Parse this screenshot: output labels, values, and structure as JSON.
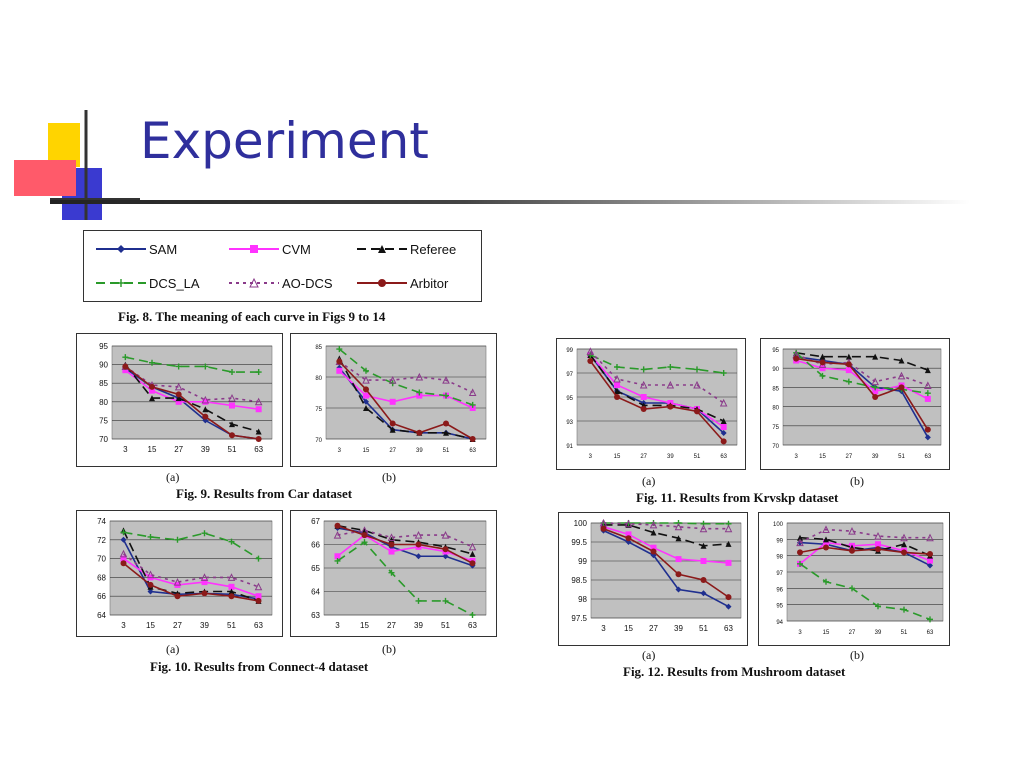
{
  "slide": {
    "title": "Experiment"
  },
  "legend": {
    "items": [
      {
        "name": "SAM",
        "color": "#1f2f8f",
        "marker": "diamond",
        "dash": ""
      },
      {
        "name": "CVM",
        "color": "#ff33ff",
        "marker": "square",
        "dash": ""
      },
      {
        "name": "Referee",
        "color": "#111111",
        "marker": "triangle-filled",
        "dash": "9,5"
      },
      {
        "name": "DCS_LA",
        "color": "#2a9a2a",
        "marker": "plus",
        "dash": "9,5"
      },
      {
        "name": "AO-DCS",
        "color": "#8a3a8a",
        "marker": "triangle-open",
        "dash": "3,4"
      },
      {
        "name": "Arbitor",
        "color": "#8b1a1a",
        "marker": "circle",
        "dash": ""
      }
    ]
  },
  "captions": {
    "fig8": "Fig. 8. The meaning of each curve in Figs 9 to 14",
    "fig9": "Fig. 9. Results from Car dataset",
    "fig10": "Fig. 10. Results from Connect-4 dataset",
    "fig11": "Fig. 11. Results from Krvskp dataset",
    "fig12": "Fig. 12. Results from Mushroom dataset",
    "a": "(a)",
    "b": "(b)"
  },
  "chart_data": [
    {
      "id": "fig9a",
      "type": "line",
      "categories": [
        "3",
        "15",
        "27",
        "39",
        "51",
        "63"
      ],
      "ylim": [
        70,
        95
      ],
      "yticks": [
        70,
        75,
        80,
        85,
        90,
        95
      ],
      "series": [
        {
          "name": "SAM",
          "values": [
            89,
            84,
            81,
            75,
            71,
            70
          ]
        },
        {
          "name": "CVM",
          "values": [
            88.5,
            83,
            80,
            80,
            79,
            78
          ]
        },
        {
          "name": "Referee",
          "values": [
            90,
            81,
            81,
            78,
            74,
            72
          ]
        },
        {
          "name": "DCS_LA",
          "values": [
            92,
            90.5,
            89.5,
            89.5,
            88,
            88
          ]
        },
        {
          "name": "AO-DCS",
          "values": [
            89.5,
            84.5,
            84,
            80.5,
            81,
            80
          ]
        },
        {
          "name": "Arbitor",
          "values": [
            89.5,
            84,
            82,
            76,
            71,
            70
          ]
        }
      ]
    },
    {
      "id": "fig9b",
      "type": "line",
      "categories": [
        "3",
        "15",
        "27",
        "39",
        "51",
        "63"
      ],
      "ylim": [
        70,
        85
      ],
      "yticks": [
        70,
        75,
        80,
        85
      ],
      "series": [
        {
          "name": "SAM",
          "values": [
            81.5,
            76,
            71.5,
            71,
            71,
            70
          ]
        },
        {
          "name": "CVM",
          "values": [
            81,
            77,
            76,
            77,
            77,
            75
          ]
        },
        {
          "name": "Referee",
          "values": [
            83,
            75,
            71.5,
            71,
            71,
            70
          ]
        },
        {
          "name": "DCS_LA",
          "values": [
            84.5,
            81,
            79,
            77.5,
            77,
            75.5
          ]
        },
        {
          "name": "AO-DCS",
          "values": [
            82.5,
            79.5,
            79.5,
            80,
            79.5,
            77.5
          ]
        },
        {
          "name": "Arbitor",
          "values": [
            82.5,
            78,
            72.5,
            71,
            72.5,
            70
          ]
        }
      ]
    },
    {
      "id": "fig10a",
      "type": "line",
      "categories": [
        "3",
        "15",
        "27",
        "39",
        "51",
        "63"
      ],
      "ylim": [
        64,
        74
      ],
      "yticks": [
        64,
        66,
        68,
        70,
        72,
        74
      ],
      "series": [
        {
          "name": "SAM",
          "values": [
            72,
            66.5,
            66.2,
            66.3,
            66.2,
            65.7
          ]
        },
        {
          "name": "CVM",
          "values": [
            70,
            68,
            67.2,
            67.5,
            67,
            66
          ]
        },
        {
          "name": "Referee",
          "values": [
            73,
            67,
            66.3,
            66.5,
            66.5,
            65.5
          ]
        },
        {
          "name": "DCS_LA",
          "values": [
            72.8,
            72.3,
            72,
            72.7,
            71.8,
            70
          ]
        },
        {
          "name": "AO-DCS",
          "values": [
            70.5,
            68.3,
            67.5,
            68,
            68,
            67
          ]
        },
        {
          "name": "Arbitor",
          "values": [
            69.5,
            67.2,
            66,
            66.3,
            66,
            65.5
          ]
        }
      ]
    },
    {
      "id": "fig10b",
      "type": "line",
      "categories": [
        "3",
        "15",
        "27",
        "39",
        "51",
        "63"
      ],
      "ylim": [
        63,
        67
      ],
      "yticks": [
        63,
        64,
        65,
        66,
        67
      ],
      "series": [
        {
          "name": "SAM",
          "values": [
            66.7,
            66.5,
            65.9,
            65.5,
            65.5,
            65.1
          ]
        },
        {
          "name": "CVM",
          "values": [
            65.5,
            66.4,
            65.7,
            65.9,
            65.7,
            65.3
          ]
        },
        {
          "name": "Referee",
          "values": [
            66.8,
            66.6,
            66.2,
            66.1,
            65.9,
            65.6
          ]
        },
        {
          "name": "DCS_LA",
          "values": [
            65.3,
            66.1,
            64.8,
            63.6,
            63.6,
            63
          ]
        },
        {
          "name": "AO-DCS",
          "values": [
            66.4,
            66.6,
            66.3,
            66.4,
            66.4,
            65.9
          ]
        },
        {
          "name": "Arbitor",
          "values": [
            66.8,
            66.4,
            66.0,
            66.0,
            65.8,
            65.2
          ]
        }
      ]
    },
    {
      "id": "fig11a",
      "type": "line",
      "categories": [
        "3",
        "15",
        "27",
        "39",
        "51",
        "63"
      ],
      "ylim": [
        91,
        99
      ],
      "yticks": [
        91,
        93,
        95,
        97,
        99
      ],
      "series": [
        {
          "name": "SAM",
          "values": [
            98.5,
            95.5,
            94.5,
            94.5,
            94,
            92
          ]
        },
        {
          "name": "CVM",
          "values": [
            98.5,
            96,
            95,
            94.5,
            94,
            92.5
          ]
        },
        {
          "name": "Referee",
          "values": [
            98.5,
            95.5,
            94.3,
            94.3,
            94,
            93
          ]
        },
        {
          "name": "DCS_LA",
          "values": [
            98.5,
            97.5,
            97.3,
            97.5,
            97.3,
            97
          ]
        },
        {
          "name": "AO-DCS",
          "values": [
            98.8,
            96.5,
            96,
            96,
            96,
            94.5
          ]
        },
        {
          "name": "Arbitor",
          "values": [
            98,
            95,
            94,
            94.2,
            93.8,
            91.3
          ]
        }
      ]
    },
    {
      "id": "fig11b",
      "type": "line",
      "categories": [
        "3",
        "15",
        "27",
        "39",
        "51",
        "63"
      ],
      "ylim": [
        70,
        95
      ],
      "yticks": [
        70,
        75,
        80,
        85,
        90,
        95
      ],
      "series": [
        {
          "name": "SAM",
          "values": [
            93,
            92,
            91,
            85,
            84,
            72
          ]
        },
        {
          "name": "CVM",
          "values": [
            92,
            90,
            89.5,
            84,
            85.5,
            82
          ]
        },
        {
          "name": "Referee",
          "values": [
            94,
            93,
            93,
            93,
            92,
            89.5
          ]
        },
        {
          "name": "DCS_LA",
          "values": [
            94,
            88,
            86.5,
            85,
            84.5,
            83.5
          ]
        },
        {
          "name": "AO-DCS",
          "values": [
            93.5,
            91,
            91.5,
            86.5,
            88,
            85.5
          ]
        },
        {
          "name": "Arbitor",
          "values": [
            92.5,
            91.5,
            91,
            82.5,
            85,
            74
          ]
        }
      ]
    },
    {
      "id": "fig12a",
      "type": "line",
      "categories": [
        "3",
        "15",
        "27",
        "39",
        "51",
        "63"
      ],
      "ylim": [
        97.5,
        100
      ],
      "yticks": [
        97.5,
        98,
        98.5,
        99,
        99.5,
        100
      ],
      "series": [
        {
          "name": "SAM",
          "values": [
            99.8,
            99.5,
            99.15,
            98.25,
            98.15,
            97.8
          ]
        },
        {
          "name": "CVM",
          "values": [
            99.9,
            99.7,
            99.35,
            99.05,
            99.0,
            98.95
          ]
        },
        {
          "name": "Referee",
          "values": [
            99.95,
            99.95,
            99.75,
            99.6,
            99.4,
            99.45
          ]
        },
        {
          "name": "DCS_LA",
          "values": [
            100,
            100,
            100,
            100,
            99.98,
            99.98
          ]
        },
        {
          "name": "AO-DCS",
          "values": [
            100,
            99.98,
            99.95,
            99.9,
            99.85,
            99.85
          ]
        },
        {
          "name": "Arbitor",
          "values": [
            99.85,
            99.6,
            99.25,
            98.65,
            98.5,
            98.05
          ]
        }
      ]
    },
    {
      "id": "fig12b",
      "type": "line",
      "categories": [
        "3",
        "15",
        "27",
        "39",
        "51",
        "63"
      ],
      "ylim": [
        94,
        100
      ],
      "yticks": [
        94,
        95,
        96,
        97,
        98,
        99,
        100
      ],
      "series": [
        {
          "name": "SAM",
          "values": [
            98.8,
            98.7,
            98.3,
            98.5,
            98.2,
            97.4
          ]
        },
        {
          "name": "CVM",
          "values": [
            97.5,
            98.8,
            98.6,
            98.7,
            98.3,
            97.7
          ]
        },
        {
          "name": "Referee",
          "values": [
            99.1,
            99,
            98.5,
            98.3,
            98.7,
            98
          ]
        },
        {
          "name": "DCS_LA",
          "values": [
            97.5,
            96.4,
            96,
            94.9,
            94.7,
            94.1
          ]
        },
        {
          "name": "AO-DCS",
          "values": [
            98.8,
            99.6,
            99.5,
            99.2,
            99.1,
            99.1
          ]
        },
        {
          "name": "Arbitor",
          "values": [
            98.2,
            98.5,
            98.3,
            98.4,
            98.2,
            98.1
          ]
        }
      ]
    }
  ]
}
